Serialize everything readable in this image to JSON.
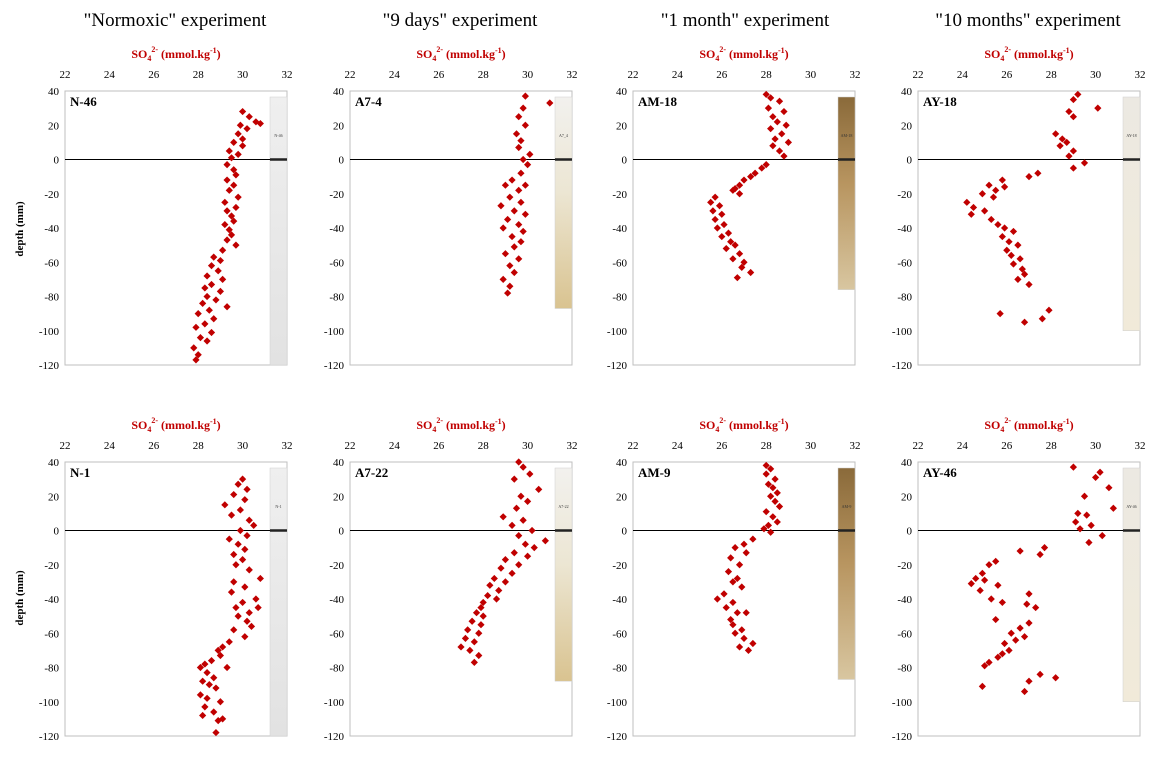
{
  "column_titles": [
    "\"Normoxic\" experiment",
    "\"9 days\" experiment",
    "\"1 month\" experiment",
    "\"10 months\" experiment"
  ],
  "x_axis_label": "SO4 2- (mmol.kg-1)",
  "x_axis_label_parts": {
    "base": "SO",
    "sub": "4",
    "sup": "2-",
    "rest": " (mmol.kg",
    "rest_sup": "-1",
    "close": ")"
  },
  "y_axis_label": "depth (mm)",
  "colors": {
    "marker": "#c00000",
    "axis_label": "#c00000",
    "zero_line": "#000000",
    "frame": "#bfbfbf"
  },
  "chart_data": [
    {
      "type": "scatter",
      "id": "N-46",
      "core_label": "N-46",
      "core_image": "gray",
      "core_bottom": -120,
      "xlim": [
        22,
        32
      ],
      "ylim": [
        -120,
        40
      ],
      "xticks": [
        22,
        24,
        26,
        28,
        30,
        32
      ],
      "yticks": [
        40,
        20,
        0,
        -20,
        -40,
        -60,
        -80,
        -100,
        -120
      ],
      "x": [
        30.0,
        30.3,
        30.6,
        29.9,
        30.2,
        30.8,
        29.8,
        30.0,
        29.6,
        30.0,
        29.4,
        29.8,
        29.5,
        29.3,
        29.6,
        29.7,
        29.3,
        29.6,
        29.4,
        29.8,
        29.2,
        29.7,
        29.3,
        29.5,
        29.6,
        29.2,
        29.4,
        29.5,
        29.3,
        29.7,
        29.1,
        28.7,
        29.0,
        28.6,
        28.9,
        28.4,
        29.1,
        28.6,
        28.3,
        29.0,
        28.4,
        28.8,
        28.2,
        29.3,
        28.5,
        28.0,
        28.7,
        28.3,
        27.9,
        28.6,
        28.1,
        28.4,
        27.8,
        28.0,
        27.9
      ],
      "y": [
        28,
        25,
        22,
        20,
        18,
        21,
        15,
        12,
        10,
        8,
        5,
        3,
        1,
        -3,
        -6,
        -9,
        -12,
        -15,
        -18,
        -22,
        -25,
        -28,
        -30,
        -33,
        -36,
        -38,
        -41,
        -44,
        -47,
        -50,
        -53,
        -57,
        -59,
        -62,
        -65,
        -68,
        -70,
        -73,
        -75,
        -77,
        -80,
        -82,
        -84,
        -86,
        -88,
        -90,
        -93,
        -96,
        -98,
        -101,
        -104,
        -106,
        -110,
        -114,
        -117
      ]
    },
    {
      "type": "scatter",
      "id": "A7-4",
      "core_label": "A7_4",
      "core_image": "beige",
      "core_bottom": -87,
      "xlim": [
        22,
        32
      ],
      "ylim": [
        -120,
        40
      ],
      "xticks": [
        22,
        24,
        26,
        28,
        30,
        32
      ],
      "yticks": [
        40,
        20,
        0,
        -20,
        -40,
        -60,
        -80,
        -100,
        -120
      ],
      "x": [
        29.9,
        31.0,
        29.8,
        29.6,
        29.9,
        29.5,
        29.7,
        29.6,
        30.1,
        29.8,
        30.0,
        29.7,
        29.3,
        29.9,
        29.0,
        29.6,
        29.2,
        29.7,
        28.8,
        29.4,
        29.9,
        29.1,
        29.6,
        28.9,
        29.8,
        29.3,
        29.7,
        29.4,
        29.0,
        29.6,
        29.2,
        29.4,
        28.9,
        29.2,
        29.1
      ],
      "y": [
        37,
        33,
        30,
        25,
        20,
        15,
        11,
        7,
        3,
        0,
        -3,
        -8,
        -12,
        -15,
        -15,
        -18,
        -22,
        -25,
        -27,
        -30,
        -32,
        -35,
        -38,
        -40,
        -42,
        -45,
        -48,
        -51,
        -55,
        -58,
        -62,
        -66,
        -70,
        -74,
        -78
      ]
    },
    {
      "type": "scatter",
      "id": "AM-18",
      "core_label": "AM-18",
      "core_image": "brown",
      "core_bottom": -76,
      "xlim": [
        22,
        32
      ],
      "ylim": [
        -120,
        40
      ],
      "xticks": [
        22,
        24,
        26,
        28,
        30,
        32
      ],
      "yticks": [
        40,
        20,
        0,
        -20,
        -40,
        -60,
        -80,
        -100,
        -120
      ],
      "x": [
        28.0,
        28.2,
        28.6,
        28.1,
        28.8,
        28.3,
        28.5,
        28.9,
        28.2,
        28.7,
        28.4,
        29.0,
        28.3,
        28.6,
        28.8,
        28.0,
        27.8,
        27.5,
        27.3,
        27.0,
        26.8,
        26.6,
        26.5,
        26.8,
        25.7,
        25.5,
        25.9,
        25.6,
        26.0,
        25.7,
        26.1,
        25.8,
        26.3,
        26.0,
        26.4,
        26.6,
        26.2,
        26.8,
        26.5,
        27.0,
        26.9,
        27.3,
        26.7
      ],
      "y": [
        38,
        36,
        34,
        30,
        28,
        25,
        22,
        20,
        18,
        15,
        12,
        10,
        8,
        5,
        2,
        -3,
        -5,
        -8,
        -10,
        -12,
        -15,
        -17,
        -18,
        -20,
        -22,
        -25,
        -27,
        -30,
        -32,
        -35,
        -38,
        -40,
        -43,
        -45,
        -48,
        -50,
        -52,
        -55,
        -58,
        -60,
        -63,
        -66,
        -69
      ]
    },
    {
      "type": "scatter",
      "id": "AY-18",
      "core_label": "AY-18",
      "core_image": "sandy",
      "core_bottom": -100,
      "xlim": [
        22,
        32
      ],
      "ylim": [
        -120,
        40
      ],
      "xticks": [
        22,
        24,
        26,
        28,
        30,
        32
      ],
      "yticks": [
        40,
        20,
        0,
        -20,
        -40,
        -60,
        -80,
        -100,
        -120
      ],
      "x": [
        29.2,
        29.0,
        30.1,
        28.8,
        29.0,
        28.2,
        28.5,
        28.7,
        28.4,
        29.0,
        28.8,
        29.5,
        29.0,
        27.4,
        27.0,
        25.8,
        25.2,
        25.9,
        25.5,
        24.9,
        25.4,
        24.2,
        24.5,
        25.0,
        24.4,
        25.3,
        25.6,
        25.9,
        26.3,
        25.8,
        26.1,
        26.5,
        26.0,
        26.2,
        26.6,
        26.3,
        26.7,
        26.8,
        26.5,
        27.0,
        27.9,
        25.7,
        27.6,
        26.8
      ],
      "y": [
        38,
        35,
        30,
        28,
        25,
        15,
        12,
        10,
        8,
        5,
        2,
        -2,
        -5,
        -8,
        -10,
        -12,
        -15,
        -16,
        -18,
        -20,
        -22,
        -25,
        -28,
        -30,
        -32,
        -35,
        -38,
        -40,
        -42,
        -45,
        -48,
        -50,
        -53,
        -56,
        -58,
        -61,
        -64,
        -67,
        -70,
        -73,
        -88,
        -90,
        -93,
        -95
      ]
    },
    {
      "type": "scatter",
      "id": "N-1",
      "core_label": "N-1",
      "core_image": "gray",
      "core_bottom": -120,
      "xlim": [
        22,
        32
      ],
      "ylim": [
        -120,
        40
      ],
      "xticks": [
        22,
        24,
        26,
        28,
        30,
        32
      ],
      "yticks": [
        40,
        20,
        0,
        -20,
        -40,
        -60,
        -80,
        -100,
        -120
      ],
      "x": [
        30.0,
        29.8,
        30.2,
        29.6,
        30.1,
        29.2,
        29.9,
        29.5,
        30.3,
        30.5,
        29.9,
        30.2,
        29.4,
        29.8,
        30.1,
        29.6,
        30.0,
        29.7,
        30.3,
        30.8,
        29.6,
        30.1,
        29.5,
        30.6,
        30.0,
        29.7,
        30.3,
        30.7,
        29.8,
        30.2,
        30.4,
        29.6,
        30.1,
        29.4,
        29.1,
        28.9,
        29.0,
        28.6,
        28.3,
        29.3,
        28.1,
        28.4,
        28.7,
        28.2,
        28.5,
        28.8,
        28.1,
        28.4,
        29.0,
        28.3,
        28.7,
        28.2,
        28.9,
        29.1,
        28.8
      ],
      "y": [
        30,
        27,
        24,
        21,
        18,
        15,
        12,
        9,
        6,
        3,
        0,
        -3,
        -5,
        -8,
        -11,
        -14,
        -17,
        -20,
        -23,
        -28,
        -30,
        -33,
        -36,
        -40,
        -42,
        -45,
        -48,
        -45,
        -50,
        -53,
        -56,
        -58,
        -62,
        -65,
        -68,
        -70,
        -73,
        -76,
        -78,
        -80,
        -80,
        -83,
        -86,
        -88,
        -90,
        -92,
        -96,
        -98,
        -100,
        -103,
        -106,
        -108,
        -111,
        -110,
        -118
      ]
    },
    {
      "type": "scatter",
      "id": "A7-22",
      "core_label": "A7-22",
      "core_image": "beige",
      "core_bottom": -88,
      "xlim": [
        22,
        32
      ],
      "ylim": [
        -120,
        40
      ],
      "xticks": [
        22,
        24,
        26,
        28,
        30,
        32
      ],
      "yticks": [
        40,
        20,
        0,
        -20,
        -40,
        -60,
        -80,
        -100,
        -120
      ],
      "x": [
        29.6,
        29.8,
        30.1,
        29.4,
        30.5,
        29.7,
        30.0,
        29.5,
        28.9,
        29.8,
        29.3,
        30.2,
        29.6,
        30.8,
        29.9,
        30.3,
        29.4,
        30.0,
        29.0,
        29.6,
        28.8,
        29.3,
        28.5,
        29.0,
        28.3,
        28.7,
        28.2,
        28.6,
        28.0,
        27.9,
        27.7,
        28.0,
        27.5,
        27.9,
        27.3,
        27.8,
        27.2,
        27.6,
        27.0,
        27.4,
        27.8,
        27.6
      ],
      "y": [
        40,
        37,
        33,
        30,
        24,
        20,
        17,
        13,
        8,
        6,
        3,
        0,
        -3,
        -6,
        -8,
        -10,
        -13,
        -15,
        -17,
        -20,
        -22,
        -25,
        -28,
        -30,
        -32,
        -35,
        -38,
        -40,
        -42,
        -45,
        -48,
        -50,
        -53,
        -55,
        -58,
        -60,
        -63,
        -65,
        -68,
        -70,
        -73,
        -77
      ]
    },
    {
      "type": "scatter",
      "id": "AM-9",
      "core_label": "AM-9",
      "core_image": "brown",
      "core_bottom": -87,
      "xlim": [
        22,
        32
      ],
      "ylim": [
        -120,
        40
      ],
      "xticks": [
        22,
        24,
        26,
        28,
        30,
        32
      ],
      "yticks": [
        40,
        20,
        0,
        -20,
        -40,
        -60,
        -80,
        -100,
        -120
      ],
      "x": [
        28.0,
        28.2,
        28.0,
        28.4,
        28.1,
        28.3,
        28.5,
        28.2,
        28.4,
        28.6,
        28.0,
        28.3,
        28.5,
        28.1,
        27.9,
        28.2,
        27.4,
        27.0,
        26.6,
        27.1,
        26.4,
        26.8,
        26.3,
        26.7,
        26.5,
        26.9,
        25.8,
        26.1,
        26.5,
        26.2,
        26.7,
        26.4,
        27.1,
        26.5,
        26.9,
        26.6,
        27.0,
        27.4,
        26.8,
        27.2
      ],
      "y": [
        38,
        36,
        33,
        30,
        27,
        25,
        22,
        20,
        17,
        14,
        11,
        8,
        5,
        3,
        1,
        -1,
        -5,
        -8,
        -10,
        -13,
        -16,
        -20,
        -24,
        -28,
        -30,
        -33,
        -40,
        -37,
        -42,
        -45,
        -48,
        -52,
        -48,
        -55,
        -58,
        -60,
        -63,
        -66,
        -68,
        -70
      ]
    },
    {
      "type": "scatter",
      "id": "AY-46",
      "core_label": "AY-46",
      "core_image": "sandy",
      "core_bottom": -100,
      "xlim": [
        22,
        32
      ],
      "ylim": [
        -120,
        40
      ],
      "xticks": [
        22,
        24,
        26,
        28,
        30,
        32
      ],
      "yticks": [
        40,
        20,
        0,
        -20,
        -40,
        -60,
        -80,
        -100,
        -120
      ],
      "x": [
        29.0,
        30.2,
        30.0,
        30.6,
        29.5,
        30.8,
        29.2,
        29.6,
        29.1,
        29.8,
        29.3,
        30.3,
        29.7,
        26.6,
        27.7,
        25.5,
        27.5,
        25.2,
        24.9,
        24.6,
        25.0,
        24.4,
        24.8,
        25.6,
        27.0,
        25.3,
        25.8,
        26.9,
        27.3,
        25.5,
        27.0,
        26.6,
        26.2,
        26.8,
        26.4,
        25.9,
        26.1,
        25.8,
        25.6,
        25.2,
        25.0,
        27.5,
        28.2,
        27.0,
        24.9,
        26.8
      ],
      "y": [
        37,
        34,
        31,
        25,
        20,
        13,
        10,
        9,
        5,
        3,
        1,
        -3,
        -7,
        -12,
        -10,
        -18,
        -14,
        -20,
        -25,
        -28,
        -29,
        -31,
        -35,
        -32,
        -37,
        -40,
        -42,
        -43,
        -45,
        -52,
        -54,
        -57,
        -60,
        -62,
        -64,
        -66,
        -70,
        -72,
        -74,
        -77,
        -79,
        -84,
        -86,
        -88,
        -91,
        -94
      ]
    }
  ]
}
